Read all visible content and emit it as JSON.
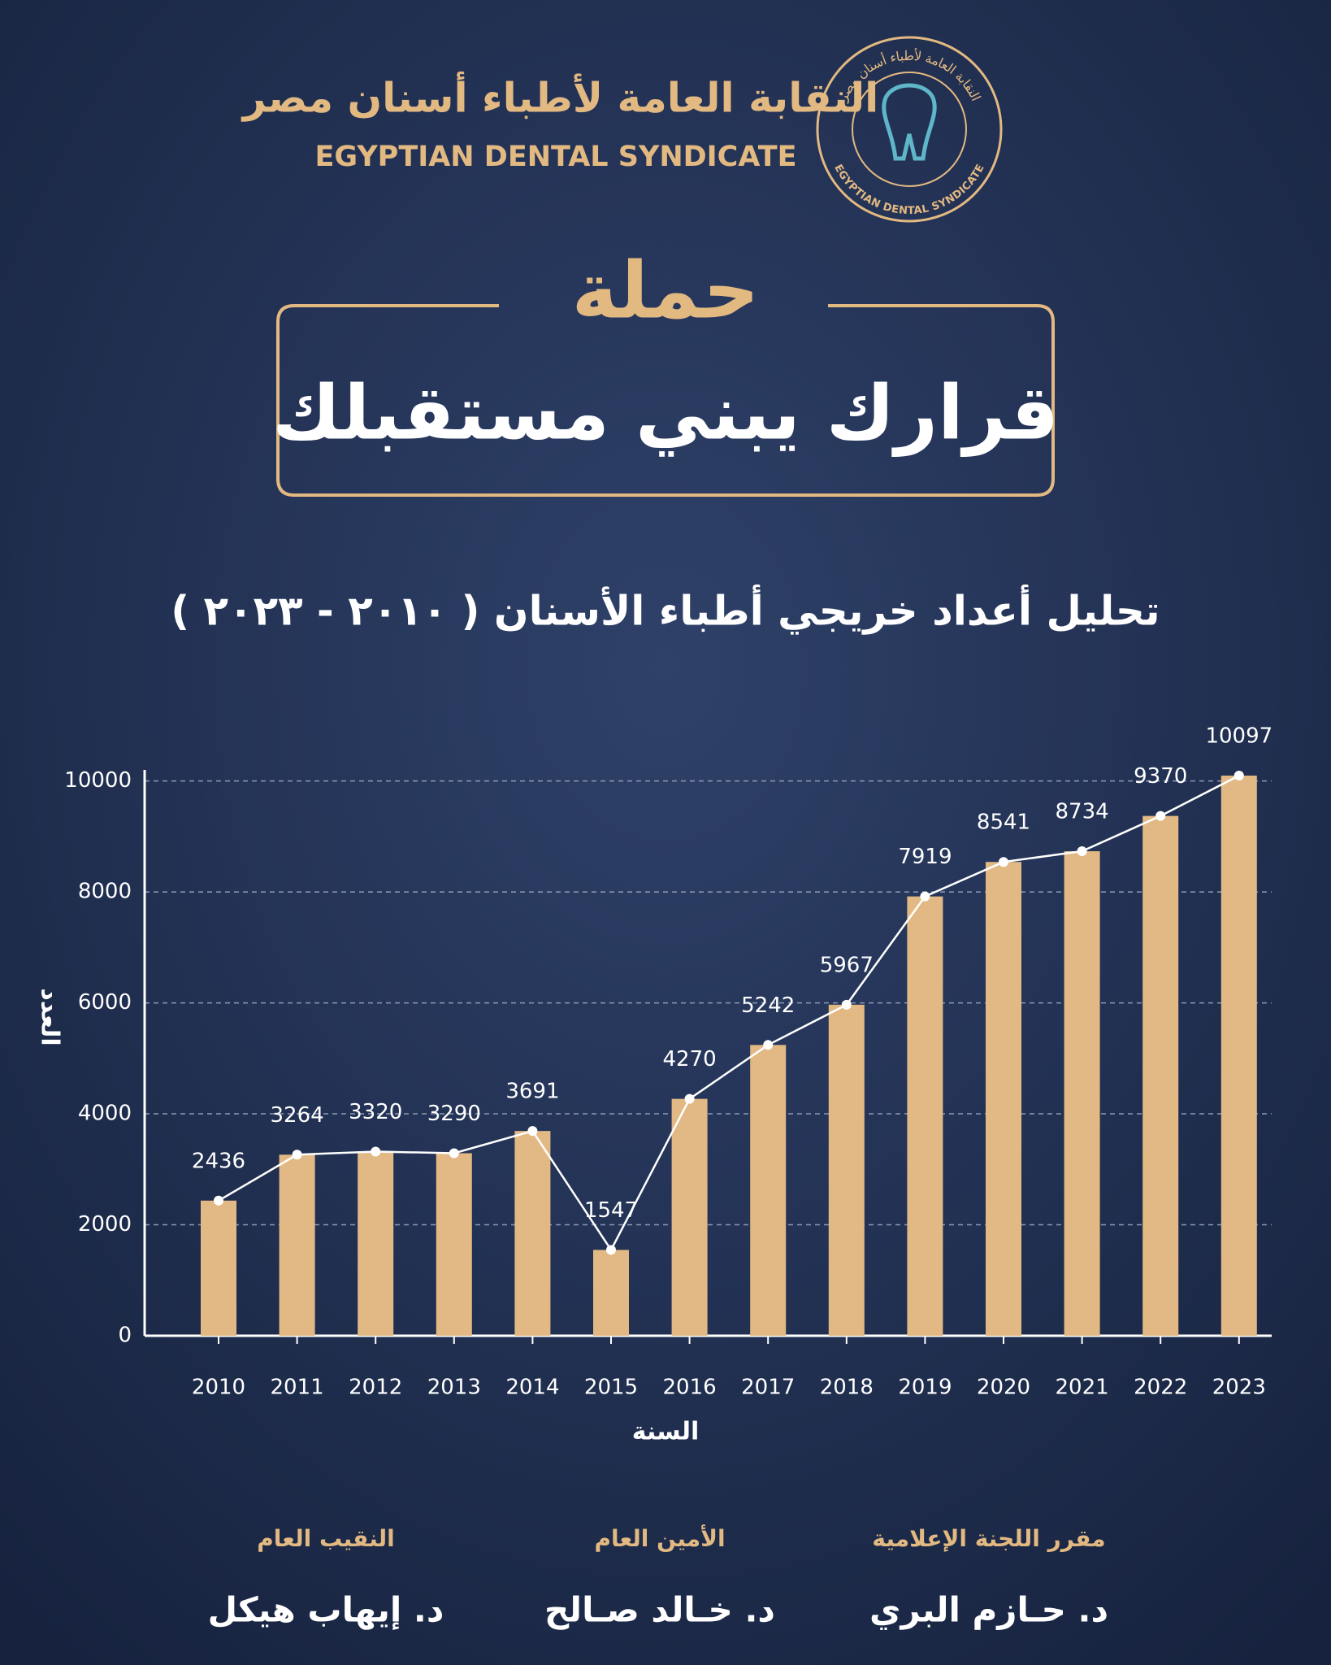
{
  "header": {
    "logo_arabic": "النقابة العامة لأطباء أسنان مصر",
    "logo_english": "EGYPTIAN DENTAL SYNDICATE"
  },
  "campaign": {
    "label": "حملة",
    "slogan": "قرارك يبني مستقبلك"
  },
  "chart_data": {
    "type": "bar",
    "overlay": "line",
    "title": "تحليل أعداد خريجي أطباء الأسنان ( ٢٠١٠ - ٢٠٢٣ )",
    "x_label": "السنة",
    "y_label": "العدد",
    "categories": [
      "2010",
      "2011",
      "2012",
      "2013",
      "2014",
      "2015",
      "2016",
      "2017",
      "2018",
      "2019",
      "2020",
      "2021",
      "2022",
      "2023"
    ],
    "values": [
      2436,
      3264,
      3320,
      3290,
      3691,
      1547,
      4270,
      5242,
      5967,
      7919,
      8541,
      8734,
      9370,
      10097
    ],
    "color": "#e2b984",
    "line_color": "#ffffff",
    "ylim": [
      0,
      10200
    ],
    "yticks": [
      0,
      2000,
      4000,
      6000,
      8000,
      10000
    ],
    "grid": true
  },
  "signatures": [
    {
      "role": "النقيب العام",
      "name": "د. إيهاب هيكل"
    },
    {
      "role": "الأمين العام",
      "name": "د. خـالد صـالح"
    },
    {
      "role": "مقرر اللجنة الإعلامية",
      "name": "د. حـازم البري"
    }
  ]
}
